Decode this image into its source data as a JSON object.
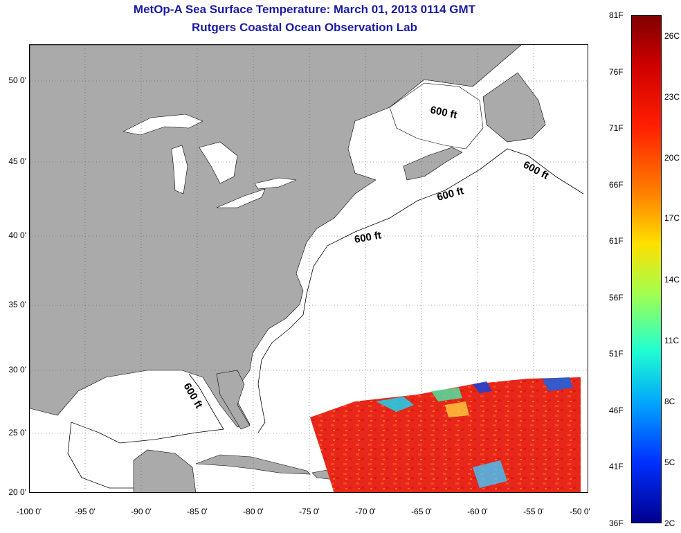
{
  "title": {
    "line1": "MetOp-A Sea Surface Temperature:  March 01, 2013 0114 GMT",
    "line2": "Rutgers Coastal Ocean Observation Lab"
  },
  "map": {
    "lat_ticks": [
      "50 0'",
      "45 0'",
      "40 0'",
      "35 0'",
      "30 0'",
      "25 0'",
      "20 0'"
    ],
    "lon_ticks": [
      "-100 0'",
      "-95 0'",
      "-90 0'",
      "-85 0'",
      "-80 0'",
      "-75 0'",
      "-70 0'",
      "-65 0'",
      "-60 0'",
      "-55 0'",
      "-50 0'"
    ],
    "contour_labels": [
      "600 ft",
      "600 ft",
      "600 ft",
      "600 ft",
      "600 ft"
    ],
    "land_color": "#aaaaaa",
    "ocean_color": "#ffffff",
    "sst_color": "#e8261a"
  },
  "colorbar": {
    "fahrenheit_labels": [
      "81F",
      "76F",
      "71F",
      "66F",
      "61F",
      "56F",
      "51F",
      "46F",
      "41F",
      "36F"
    ],
    "celsius_labels": [
      "26C",
      "23C",
      "20C",
      "17C",
      "14C",
      "11C",
      "8C",
      "5C",
      "2C"
    ],
    "colormap": "jet"
  }
}
